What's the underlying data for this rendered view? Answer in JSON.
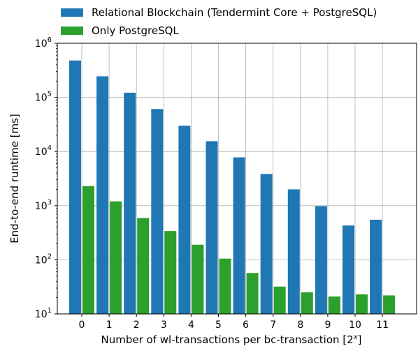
{
  "chart_data": {
    "type": "bar",
    "scale": "log",
    "xlabel_base": "Number of wl-transactions per bc-transaction [2",
    "xlabel_sup": "x",
    "xlabel_end": "]",
    "ylabel": "End-to-end runtime [ms]",
    "categories": [
      "0",
      "1",
      "2",
      "3",
      "4",
      "5",
      "6",
      "7",
      "8",
      "9",
      "10",
      "11"
    ],
    "ylim": [
      10,
      1000000
    ],
    "yticks": [
      {
        "base": "10",
        "exp": "1"
      },
      {
        "base": "10",
        "exp": "2"
      },
      {
        "base": "10",
        "exp": "3"
      },
      {
        "base": "10",
        "exp": "4"
      },
      {
        "base": "10",
        "exp": "5"
      },
      {
        "base": "10",
        "exp": "6"
      }
    ],
    "grid": true,
    "legend_position": "top",
    "series": [
      {
        "name": "Relational Blockchain (Tendermint Core + PostgreSQL)",
        "color": "#1f77b4",
        "values": [
          480000,
          245000,
          122000,
          61000,
          30000,
          15500,
          7800,
          3850,
          2000,
          980,
          430,
          550
        ]
      },
      {
        "name": "Only PostgreSQL",
        "color": "#2ca02c",
        "values": [
          2300,
          1200,
          590,
          340,
          190,
          105,
          57,
          32,
          25,
          21,
          23,
          22
        ]
      }
    ]
  }
}
